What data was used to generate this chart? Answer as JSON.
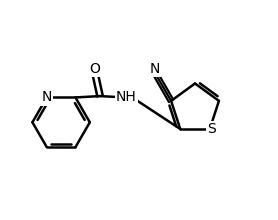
{
  "bg_color": "#ffffff",
  "line_color": "#000000",
  "line_width": 1.8,
  "font_size": 10,
  "fig_width": 2.78,
  "fig_height": 2.2,
  "dpi": 100,
  "xlim": [
    0,
    10
  ],
  "ylim": [
    0,
    8
  ]
}
